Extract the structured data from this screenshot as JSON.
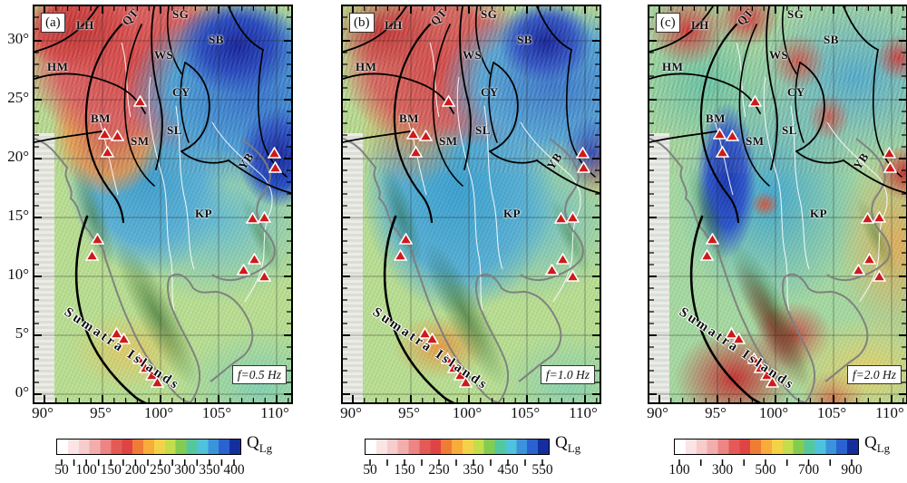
{
  "panels": [
    {
      "letter": "(a)",
      "freq": "f=0.5 Hz",
      "colorbar_ticks": [
        "50",
        "100",
        "150",
        "200",
        "250",
        "300",
        "350",
        "400"
      ]
    },
    {
      "letter": "(b)",
      "freq": "f=1.0 Hz",
      "colorbar_ticks": [
        "50",
        "150",
        "250",
        "350",
        "450",
        "550"
      ]
    },
    {
      "letter": "(c)",
      "freq": "f=2.0 Hz",
      "colorbar_ticks": [
        "100",
        "300",
        "500",
        "700",
        "900"
      ]
    }
  ],
  "region_labels": {
    "LH": "LH",
    "QT": "QT",
    "SG": "SG",
    "SB": "SB",
    "HM": "HM",
    "WS": "WS",
    "CY": "CY",
    "BM": "BM",
    "SL": "SL",
    "SM": "SM",
    "YB": "YB",
    "KP": "KP"
  },
  "arc_label": "Sumatra Islands",
  "colorbar_label": {
    "main": "Q",
    "sub": "Lg"
  },
  "axes": {
    "lon": [
      "90°",
      "95°",
      "100°",
      "105°",
      "110°"
    ],
    "lat": [
      "30°",
      "25°",
      "20°",
      "15°",
      "10°",
      "5°",
      "0°"
    ]
  },
  "colorbar_colors": [
    "#ffffff",
    "#fbe4e4",
    "#f7cccb",
    "#f2aeac",
    "#ec8583",
    "#e45a57",
    "#e04343",
    "#ef7c35",
    "#f9ab3b",
    "#f2d348",
    "#c3dd4c",
    "#82cc52",
    "#55c79e",
    "#4fc3dc",
    "#3b93dc",
    "#2a63cf",
    "#152e9e"
  ],
  "colors": {
    "volcano": "#ce1a1a",
    "fault": "#000000",
    "coast": "#7d7d7d",
    "river": "#ffffff"
  }
}
